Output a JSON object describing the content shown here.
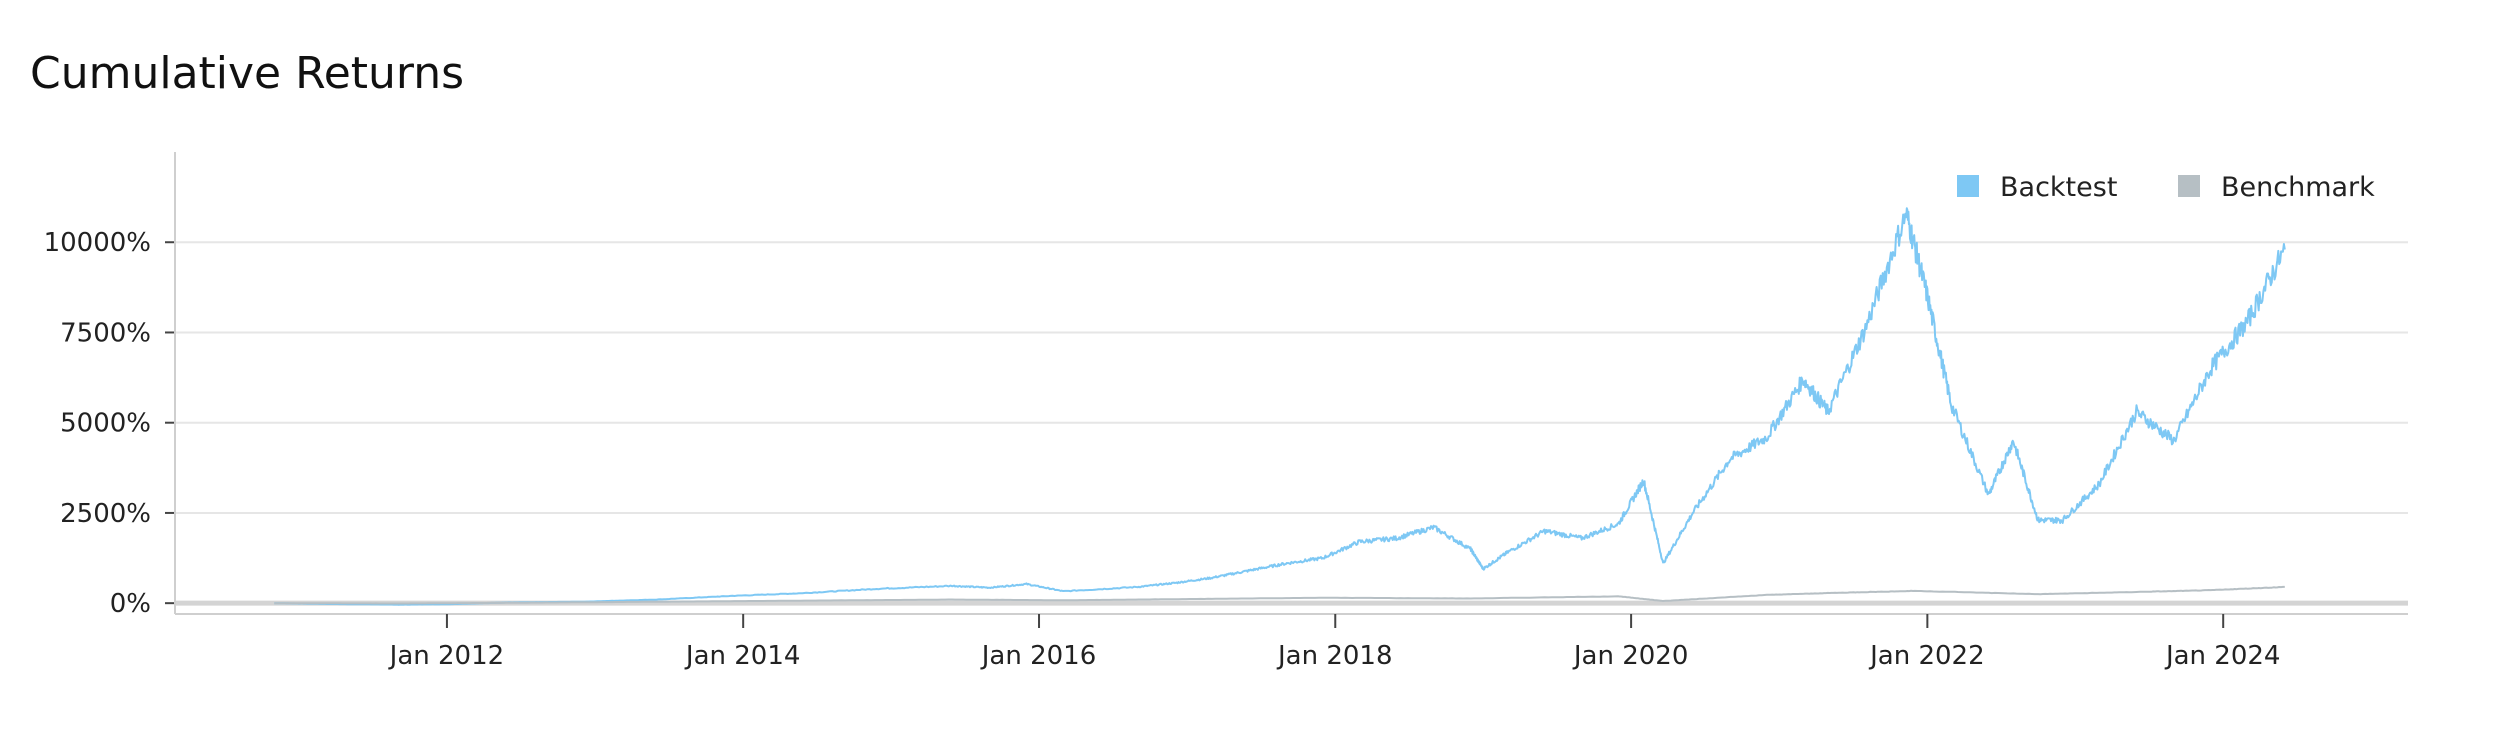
{
  "chart_data": {
    "type": "line",
    "title": "Cumulative Returns",
    "xlabel": "",
    "ylabel": "",
    "y_unit": "%",
    "xlim": [
      "2010-03-01",
      "2025-04-01"
    ],
    "ylim": [
      -300,
      12500
    ],
    "y_ticks": [
      0,
      2500,
      5000,
      7500,
      10000
    ],
    "y_tick_labels": [
      "0%",
      "2500%",
      "5000%",
      "7500%",
      "10000%"
    ],
    "x_ticks": [
      "2012-01-01",
      "2014-01-01",
      "2016-01-01",
      "2018-01-01",
      "2020-01-01",
      "2022-01-01",
      "2024-01-01"
    ],
    "x_tick_labels": [
      "Jan 2012",
      "Jan 2014",
      "Jan 2016",
      "Jan 2018",
      "Jan 2020",
      "Jan 2022",
      "Jan 2024"
    ],
    "grid": "horizontal",
    "legend_position": "top-right",
    "series": [
      {
        "name": "Backtest",
        "color": "#7ec8f4",
        "points": [
          [
            "2010-11-01",
            0
          ],
          [
            "2011-03-01",
            -20
          ],
          [
            "2011-09-01",
            -40
          ],
          [
            "2012-01-01",
            -30
          ],
          [
            "2012-06-01",
            20
          ],
          [
            "2012-12-01",
            40
          ],
          [
            "2013-06-01",
            100
          ],
          [
            "2013-12-01",
            200
          ],
          [
            "2014-06-01",
            280
          ],
          [
            "2014-12-01",
            400
          ],
          [
            "2015-06-01",
            480
          ],
          [
            "2015-09-01",
            430
          ],
          [
            "2015-12-01",
            530
          ],
          [
            "2016-03-01",
            330
          ],
          [
            "2016-09-01",
            450
          ],
          [
            "2016-12-01",
            560
          ],
          [
            "2017-03-01",
            700
          ],
          [
            "2017-06-01",
            900
          ],
          [
            "2017-09-01",
            1100
          ],
          [
            "2017-12-01",
            1250
          ],
          [
            "2018-03-01",
            1700
          ],
          [
            "2018-06-01",
            1800
          ],
          [
            "2018-09-01",
            2100
          ],
          [
            "2018-12-01",
            1500
          ],
          [
            "2019-01-01",
            950
          ],
          [
            "2019-03-01",
            1400
          ],
          [
            "2019-06-01",
            2000
          ],
          [
            "2019-09-01",
            1800
          ],
          [
            "2019-12-01",
            2200
          ],
          [
            "2020-02-01",
            3400
          ],
          [
            "2020-03-20",
            1100
          ],
          [
            "2020-06-01",
            2500
          ],
          [
            "2020-09-01",
            4000
          ],
          [
            "2020-12-01",
            4600
          ],
          [
            "2021-03-01",
            6200
          ],
          [
            "2021-05-01",
            5300
          ],
          [
            "2021-08-01",
            7600
          ],
          [
            "2021-11-10",
            10800
          ],
          [
            "2022-01-01",
            8500
          ],
          [
            "2022-03-01",
            5500
          ],
          [
            "2022-06-01",
            3000
          ],
          [
            "2022-08-01",
            4500
          ],
          [
            "2022-10-01",
            2300
          ],
          [
            "2022-12-01",
            2300
          ],
          [
            "2023-03-01",
            3300
          ],
          [
            "2023-06-01",
            5300
          ],
          [
            "2023-09-01",
            4500
          ],
          [
            "2023-12-01",
            6500
          ],
          [
            "2024-03-01",
            7800
          ],
          [
            "2024-06-01",
            9800
          ]
        ]
      },
      {
        "name": "Benchmark",
        "color": "#b6bfc4",
        "points": [
          [
            "2010-11-01",
            0
          ],
          [
            "2011-09-01",
            -10
          ],
          [
            "2012-06-01",
            10
          ],
          [
            "2013-06-01",
            40
          ],
          [
            "2014-06-01",
            70
          ],
          [
            "2015-06-01",
            100
          ],
          [
            "2016-03-01",
            80
          ],
          [
            "2016-12-01",
            110
          ],
          [
            "2017-12-01",
            150
          ],
          [
            "2018-12-01",
            130
          ],
          [
            "2019-12-01",
            190
          ],
          [
            "2020-03-20",
            60
          ],
          [
            "2020-12-01",
            230
          ],
          [
            "2021-06-01",
            290
          ],
          [
            "2021-12-01",
            340
          ],
          [
            "2022-10-01",
            250
          ],
          [
            "2023-06-01",
            310
          ],
          [
            "2023-12-01",
            360
          ],
          [
            "2024-06-01",
            450
          ]
        ]
      }
    ]
  }
}
